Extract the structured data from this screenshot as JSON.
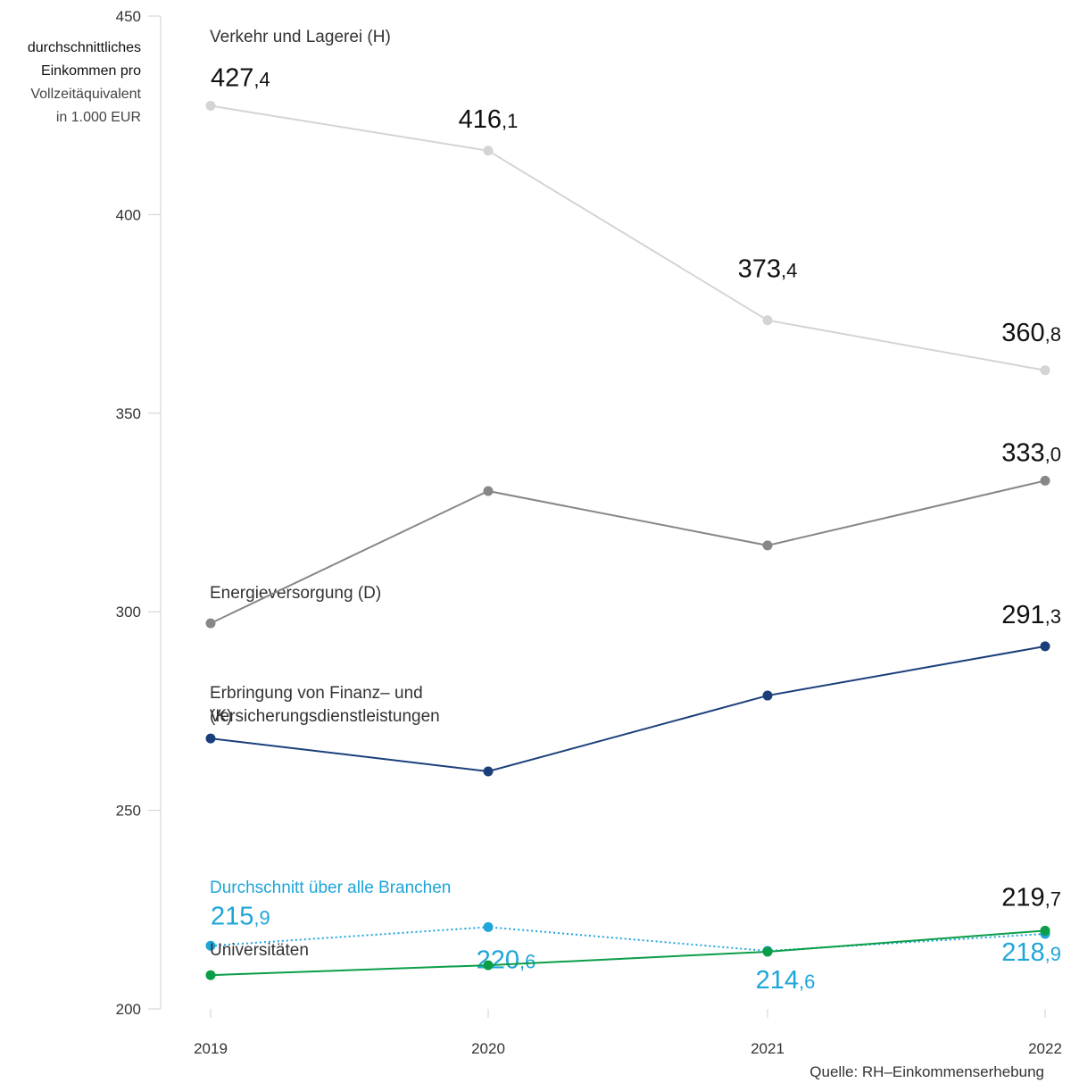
{
  "chart_data": {
    "type": "line",
    "ylabel": [
      "durchschnittliches",
      "Einkommen pro",
      "Vollzeitäquivalent",
      "in 1.000 EUR"
    ],
    "categories": [
      "2019",
      "2020",
      "2021",
      "2022"
    ],
    "ylim": [
      200,
      450
    ],
    "yticks": [
      200,
      250,
      300,
      350,
      400,
      450
    ],
    "source": "Quelle: RH–Einkommenserhebung",
    "series": [
      {
        "name": "Verkehr und Lagerei (H)",
        "color": "#d4d4d4",
        "label_color": "#111111",
        "name_color": "#333333",
        "values": [
          427.4,
          416.1,
          373.4,
          360.8
        ],
        "value_labels": [
          "427,4",
          "416,1",
          "373,4",
          "360,8"
        ]
      },
      {
        "name": "Energieversorgung (D)",
        "color": "#878787",
        "label_color": "#111111",
        "name_color": "#333333",
        "values": [
          297.1,
          330.4,
          316.7,
          333.0
        ],
        "value_labels": [
          null,
          null,
          null,
          "333,0"
        ]
      },
      {
        "name": "Erbringung von Finanz– und Versicherungsdienstleistungen (K)",
        "color": "#1b3f7a",
        "label_color": "#111111",
        "name_color": "#333333",
        "values": [
          268.1,
          259.8,
          278.9,
          291.3
        ],
        "value_labels": [
          null,
          null,
          null,
          "291,3"
        ]
      },
      {
        "name": "Durchschnitt über alle Branchen",
        "color": "#1ea5d9",
        "label_color": "#1ea5d9",
        "name_color": "#1ea5d9",
        "dash": "dotted",
        "values": [
          215.9,
          220.6,
          214.6,
          218.9
        ],
        "value_labels": [
          "215,9",
          "220,6",
          "214,6",
          "218,9"
        ]
      },
      {
        "name": "Universitäten",
        "color": "#0a9e48",
        "label_color": "#111111",
        "name_color": "#333333",
        "values": [
          208.5,
          211.0,
          214.4,
          219.7
        ],
        "value_labels": [
          null,
          null,
          null,
          "219,7"
        ]
      }
    ]
  }
}
